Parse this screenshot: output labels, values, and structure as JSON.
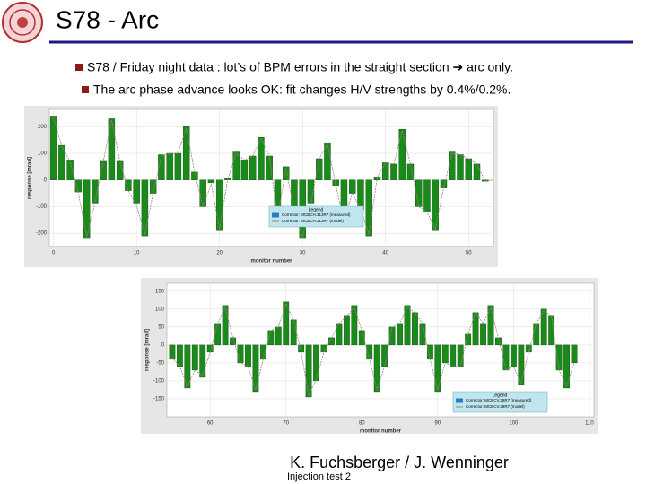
{
  "slide": {
    "title": "S78 - Arc",
    "bullets": [
      "S78 / Friday night data : lot’s of BPM errors in the straight section ➔ arc only.",
      "The arc phase advance looks OK: fit changes H/V strengths by 0.4%/0.2%."
    ],
    "author": "K. Fuchsberger / J. Wenninger",
    "footer": "Injection test 2"
  },
  "chart_data": [
    {
      "type": "bar",
      "x_label": "monitor number",
      "y_label": "response [mrad]",
      "legend_title": "Legend",
      "x": [
        0,
        1,
        2,
        3,
        4,
        5,
        6,
        7,
        8,
        9,
        10,
        11,
        12,
        13,
        14,
        15,
        16,
        17,
        18,
        19,
        20,
        21,
        22,
        23,
        24,
        25,
        26,
        27,
        28,
        29,
        30,
        31,
        32,
        33,
        34,
        35,
        36,
        37,
        38,
        39,
        40,
        41,
        42,
        43,
        44,
        45,
        46,
        47,
        48,
        49,
        50,
        51,
        52,
        53
      ],
      "series": [
        {
          "name": "Corrector: MCBCH.313R7 (measured)",
          "color": "#1a8a1a",
          "values": [
            240,
            130,
            75,
            -45,
            -220,
            -90,
            70,
            230,
            70,
            -40,
            -90,
            -210,
            -50,
            95,
            100,
            100,
            200,
            30,
            -100,
            -10,
            -190,
            5,
            105,
            75,
            90,
            160,
            90,
            -150,
            50,
            -120,
            -220,
            -90,
            80,
            140,
            -20,
            -160,
            -50,
            -110,
            -210,
            10,
            65,
            60,
            190,
            60,
            -100,
            -120,
            -190,
            -30,
            105,
            95,
            80,
            60,
            -5,
            0
          ]
        },
        {
          "name": "Corrector: MCBCH.313R7 (model)",
          "color": "#a08080",
          "values": [
            235,
            125,
            70,
            -50,
            -215,
            -85,
            70,
            225,
            70,
            -40,
            -95,
            -205,
            -50,
            90,
            100,
            100,
            195,
            30,
            -100,
            -15,
            -185,
            5,
            100,
            75,
            90,
            155,
            90,
            -145,
            45,
            -120,
            -215,
            -90,
            80,
            135,
            -20,
            -155,
            -50,
            -110,
            -205,
            10,
            65,
            60,
            185,
            60,
            -100,
            -120,
            -185,
            -30,
            100,
            95,
            80,
            60,
            -5,
            0
          ]
        }
      ],
      "xlim": [
        -0.5,
        53
      ],
      "xticks": [
        0,
        10,
        20,
        30,
        40,
        50
      ],
      "ylim": [
        -250,
        265
      ],
      "yticks": [
        -200,
        -100,
        0,
        100,
        200
      ],
      "grid": true
    },
    {
      "type": "bar",
      "x_label": "monitor number",
      "y_label": "response [mrad]",
      "legend_title": "Legend",
      "x": [
        55,
        56,
        57,
        58,
        59,
        60,
        61,
        62,
        63,
        64,
        65,
        66,
        67,
        68,
        69,
        70,
        71,
        72,
        73,
        74,
        75,
        76,
        77,
        78,
        79,
        80,
        81,
        82,
        83,
        84,
        85,
        86,
        87,
        88,
        89,
        90,
        91,
        92,
        93,
        94,
        95,
        96,
        97,
        98,
        99,
        100,
        101,
        102,
        103,
        104,
        105,
        106,
        107,
        108
      ],
      "series": [
        {
          "name": "Corrector: MCBCV.28R7 (measured)",
          "color": "#1a8a1a",
          "values": [
            -40,
            -60,
            -120,
            -70,
            -90,
            -20,
            60,
            110,
            20,
            -50,
            -60,
            -130,
            -40,
            40,
            50,
            120,
            70,
            -20,
            -145,
            -100,
            -20,
            20,
            60,
            80,
            110,
            40,
            -40,
            -130,
            -60,
            50,
            60,
            110,
            90,
            60,
            -40,
            -130,
            -50,
            -60,
            -60,
            30,
            90,
            60,
            110,
            20,
            -70,
            -60,
            -110,
            -20,
            60,
            100,
            80,
            -70,
            -120,
            -50
          ]
        },
        {
          "name": "Corrector: MCBCV.28R7 (model)",
          "color": "#a08080",
          "values": [
            -35,
            -60,
            -115,
            -70,
            -85,
            -20,
            60,
            105,
            20,
            -50,
            -60,
            -125,
            -40,
            40,
            50,
            115,
            70,
            -20,
            -140,
            -95,
            -20,
            20,
            60,
            80,
            105,
            40,
            -40,
            -125,
            -60,
            50,
            60,
            105,
            90,
            60,
            -40,
            -125,
            -50,
            -60,
            -60,
            30,
            90,
            60,
            105,
            20,
            -70,
            -60,
            -105,
            -20,
            60,
            95,
            80,
            -70,
            -115,
            -50
          ]
        }
      ],
      "xlim": [
        54.3,
        110.6
      ],
      "xticks": [
        60,
        70,
        80,
        90,
        100,
        110
      ],
      "ylim": [
        -200,
        172
      ],
      "yticks": [
        -150,
        -100,
        -50,
        0,
        50,
        100,
        150
      ],
      "grid": true
    }
  ]
}
